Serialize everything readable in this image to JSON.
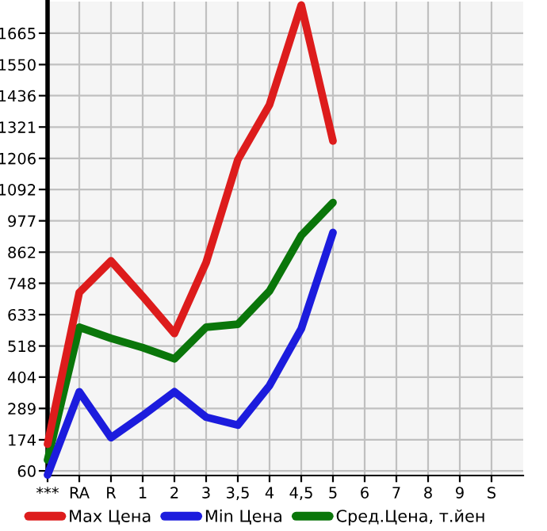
{
  "chart_data": {
    "type": "line",
    "categories": [
      "***",
      "RA",
      "R",
      "1",
      "2",
      "3",
      "3,5",
      "4",
      "4,5",
      "5",
      "6",
      "7",
      "8",
      "9",
      "S"
    ],
    "series": [
      {
        "name": "Max Цена",
        "color": "#dd1c1c",
        "values": [
          158,
          714,
          830,
          700,
          564,
          824,
          1201,
          1403,
          1768,
          1270,
          null,
          null,
          null,
          null,
          null
        ]
      },
      {
        "name": "Min Цена",
        "color": "#1c1cdd",
        "values": [
          45,
          350,
          182,
          263,
          350,
          257,
          228,
          373,
          581,
          934,
          null,
          null,
          null,
          null,
          null
        ]
      },
      {
        "name": "Сред.Цена, т.йен",
        "color": "#0a760a",
        "values": [
          100,
          587,
          546,
          512,
          471,
          587,
          598,
          720,
          923,
          1044,
          null,
          null,
          null,
          null,
          null
        ]
      }
    ],
    "ylim": [
      43,
      1781
    ],
    "yticks": [
      60,
      174,
      289,
      404,
      518,
      633,
      748,
      862,
      977,
      1092,
      1206,
      1321,
      1436,
      1550,
      1665
    ],
    "grid": true,
    "legend": "bottom",
    "marker": "none",
    "line_style": "solid"
  }
}
